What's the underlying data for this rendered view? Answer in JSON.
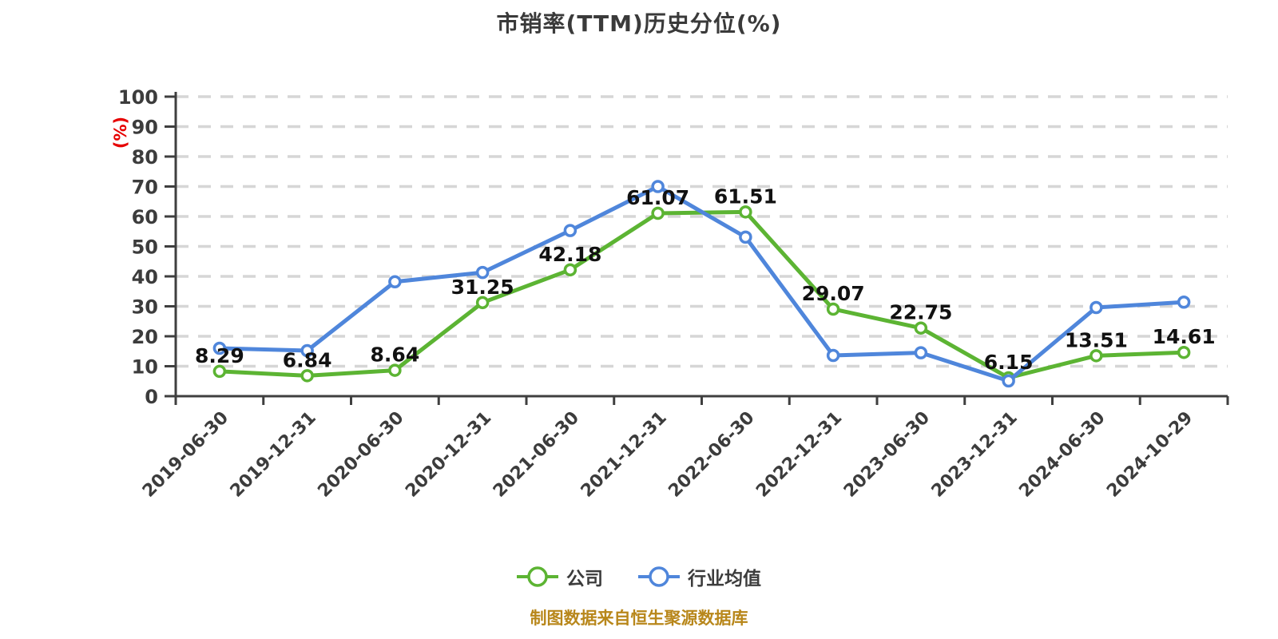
{
  "title": "市销率(TTM)历史分位(%)",
  "footer": {
    "text": "制图数据来自恒生聚源数据库",
    "color": "#b8871b"
  },
  "y_axis": {
    "unit_label": "(%)",
    "unit_label_color": "#e60000",
    "ticks": [
      0,
      10,
      20,
      30,
      40,
      50,
      60,
      70,
      80,
      90,
      100
    ]
  },
  "colors": {
    "company_line": "#5CB433",
    "industry_line": "#4F86DB",
    "grid": "#d6d6d6",
    "axis": "#3f3f3f",
    "tick_label": "#3c3c3c",
    "value_label": "#111111",
    "title": "#3a3a3a"
  },
  "chart_data": {
    "type": "line",
    "title": "市销率(TTM)历史分位(%)",
    "xlabel": "",
    "ylabel": "(%)",
    "ylim": [
      0,
      100
    ],
    "y_tick_step": 10,
    "grid": "horizontal dashed",
    "legend_position": "bottom",
    "categories": [
      "2019-06-30",
      "2019-12-31",
      "2020-06-30",
      "2020-12-31",
      "2021-06-30",
      "2021-12-31",
      "2022-06-30",
      "2022-12-31",
      "2023-06-30",
      "2023-12-31",
      "2024-06-30",
      "2024-10-29"
    ],
    "series": [
      {
        "name": "公司",
        "key": "company",
        "color": "#5CB433",
        "marker": "circle-white-fill",
        "show_value_labels": true,
        "values": [
          8.29,
          6.84,
          8.64,
          31.25,
          42.18,
          61.07,
          61.51,
          29.07,
          22.75,
          6.15,
          13.51,
          14.61
        ]
      },
      {
        "name": "行业均值",
        "key": "industry-average",
        "color": "#4F86DB",
        "marker": "circle-white-fill",
        "show_value_labels": false,
        "values": [
          16.0,
          15.2,
          38.2,
          41.3,
          55.3,
          70.0,
          53.1,
          13.6,
          14.5,
          5.1,
          29.6,
          31.4
        ]
      }
    ]
  }
}
